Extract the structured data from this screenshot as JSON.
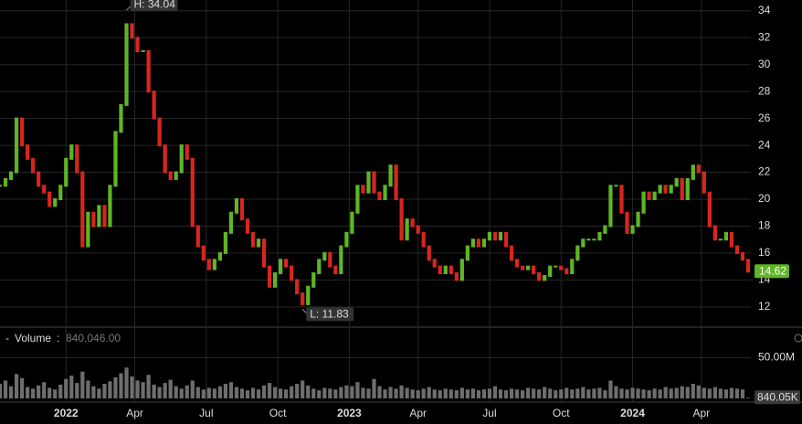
{
  "chart_data": {
    "type": "stock",
    "x": [
      0,
      1,
      2,
      3,
      4,
      5,
      6,
      7,
      8,
      9,
      10,
      11,
      12,
      13,
      14,
      15,
      16,
      17,
      18,
      19,
      20,
      21,
      22,
      23,
      24,
      25,
      26,
      27,
      28,
      29,
      30,
      31,
      32,
      33,
      34,
      35,
      36,
      37,
      38,
      39,
      40,
      41,
      42,
      43,
      44,
      45,
      46,
      47,
      48,
      49,
      50,
      51,
      52,
      53,
      54,
      55,
      56,
      57,
      58,
      59,
      60,
      61,
      62,
      63,
      64,
      65,
      66,
      67,
      68,
      69,
      70,
      71,
      72,
      73,
      74,
      75,
      76,
      77,
      78,
      79,
      80,
      81,
      82,
      83,
      84,
      85,
      86,
      87,
      88,
      89,
      90,
      91,
      92,
      93,
      94,
      95,
      96,
      97,
      98,
      99,
      100,
      101,
      102,
      103,
      104,
      105,
      106,
      107,
      108,
      109,
      110,
      111,
      112,
      113,
      114,
      115,
      116,
      117,
      118,
      119,
      120,
      121,
      122,
      123,
      124,
      125,
      126,
      127,
      128,
      129,
      130,
      131,
      132,
      133,
      134,
      135,
      136
    ],
    "price": [
      21,
      21.5,
      22,
      26,
      24,
      23,
      22,
      21,
      20.5,
      19.5,
      20,
      21,
      23,
      24,
      22,
      16.5,
      19,
      18,
      19.5,
      18,
      21,
      25,
      27,
      33,
      32,
      31,
      31,
      28,
      26,
      24,
      22,
      21.5,
      22,
      24,
      23,
      18,
      16.5,
      15.5,
      14.8,
      15.5,
      16,
      17.5,
      19,
      20,
      18.5,
      17.5,
      16.5,
      17,
      15,
      13.5,
      14.5,
      15.5,
      15,
      14,
      13,
      12.2,
      13.5,
      14.5,
      15.5,
      16,
      15,
      14.5,
      16.5,
      17.5,
      19,
      21,
      20.5,
      22,
      20.5,
      20,
      21,
      22.5,
      20,
      17,
      18.5,
      18,
      17.5,
      16.5,
      15.5,
      15,
      14.5,
      15,
      14.5,
      14,
      15.5,
      16.5,
      17,
      16.5,
      17,
      17.5,
      17,
      17.5,
      16.5,
      15.5,
      15,
      14.8,
      15,
      14.5,
      14,
      14.3,
      15,
      15,
      14.8,
      14.5,
      15.5,
      16.5,
      17,
      17,
      17,
      17.5,
      18,
      21,
      21,
      19,
      17.5,
      18,
      19,
      20.5,
      20,
      20.5,
      21,
      20.5,
      21,
      21.5,
      20,
      21.5,
      22.5,
      22,
      20.5,
      18,
      17,
      17,
      17.5,
      16.5,
      16,
      15.5,
      14.62
    ],
    "volume": [
      18,
      22,
      15,
      30,
      25,
      14,
      12,
      16,
      20,
      13,
      11,
      17,
      24,
      28,
      19,
      33,
      22,
      15,
      12,
      18,
      21,
      26,
      31,
      38,
      27,
      22,
      20,
      29,
      17,
      14,
      19,
      23,
      15,
      12,
      16,
      22,
      14,
      11,
      13,
      12,
      15,
      18,
      20,
      14,
      12,
      10,
      13,
      11,
      16,
      19,
      14,
      12,
      11,
      15,
      18,
      22,
      16,
      12,
      10,
      13,
      12,
      11,
      14,
      16,
      15,
      20,
      13,
      12,
      24,
      15,
      11,
      14,
      12,
      16,
      13,
      11,
      10,
      12,
      14,
      11,
      10,
      12,
      11,
      10,
      13,
      11,
      12,
      10,
      11,
      12,
      15,
      11,
      10,
      12,
      11,
      10,
      13,
      12,
      11,
      14,
      12,
      10,
      11,
      13,
      11,
      12,
      14,
      11,
      12,
      13,
      10,
      22,
      15,
      12,
      11,
      13,
      12,
      11,
      10,
      12,
      11,
      14,
      12,
      13,
      15,
      14,
      18,
      16,
      13,
      12,
      14,
      12,
      11,
      13,
      12,
      11,
      0.840046
    ],
    "xlim": [
      0,
      136.5
    ],
    "xticks": [
      {
        "value": 12,
        "label": "2022"
      },
      {
        "value": 24.5,
        "label": "Apr"
      },
      {
        "value": 37.5,
        "label": "Jul"
      },
      {
        "value": 50.5,
        "label": "Oct"
      },
      {
        "value": 63.5,
        "label": "2023"
      },
      {
        "value": 76,
        "label": "Apr"
      },
      {
        "value": 89,
        "label": "Jul"
      },
      {
        "value": 102,
        "label": "Oct"
      },
      {
        "value": 115,
        "label": "2024"
      },
      {
        "value": 127.5,
        "label": "Apr"
      }
    ],
    "ylim": [
      10.7,
      34.8
    ],
    "yticks": [
      12,
      14,
      16,
      18,
      20,
      22,
      24,
      26,
      28,
      30,
      32,
      34
    ],
    "volume_ylim": [
      0,
      63
    ],
    "volume_yticks": [
      {
        "value": 50,
        "label": "50.00M"
      }
    ],
    "up_color": "#5fb526",
    "down_color": "#d7261e",
    "volume_color": "#6e6e6e",
    "grid": true,
    "annotations": [
      {
        "label": "H: 34.04",
        "value": 34.04,
        "x": 23
      },
      {
        "label": "L: 11.83",
        "value": 11.83,
        "x": 55
      }
    ],
    "last_price": {
      "value": 14.62,
      "label": "14.62"
    },
    "last_volume": {
      "value": 0.84005,
      "label": "840.05K"
    },
    "volume_legend": {
      "name": "Volume",
      "value": 0.840046,
      "label": "840,046.00"
    }
  }
}
